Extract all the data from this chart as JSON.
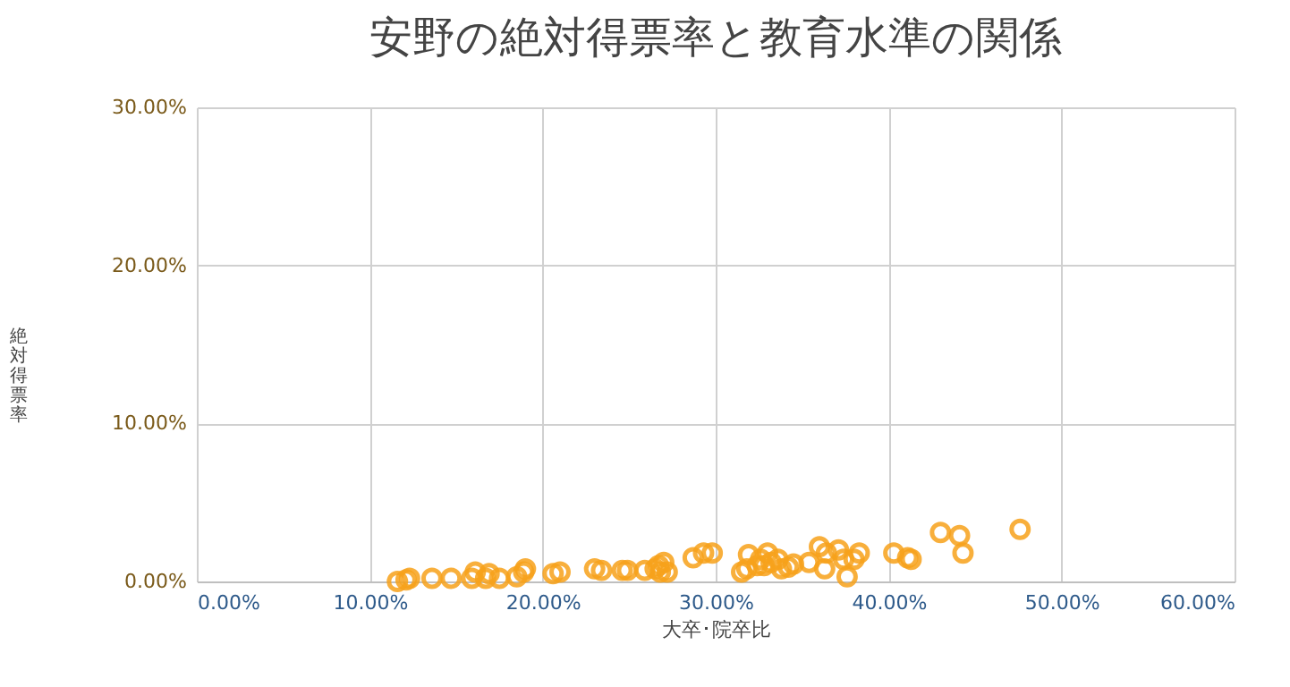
{
  "chart_data": {
    "type": "scatter",
    "title": "安野の絶対得票率と教育水準の関係",
    "xlabel": "大卒･院卒比",
    "ylabel": "絶対得票率",
    "x": [
      11.6,
      12.1,
      12.3,
      13.6,
      14.7,
      15.9,
      16.1,
      16.7,
      16.9,
      17.5,
      18.5,
      18.9,
      19.0,
      20.6,
      21.0,
      23.0,
      23.4,
      24.6,
      24.9,
      25.9,
      26.5,
      26.7,
      26.8,
      27.0,
      27.2,
      28.7,
      29.3,
      29.8,
      31.5,
      31.8,
      31.9,
      32.4,
      32.6,
      32.8,
      33.0,
      33.2,
      33.6,
      33.8,
      34.2,
      34.5,
      35.4,
      36.0,
      36.3,
      36.4,
      37.1,
      37.4,
      37.6,
      38.0,
      38.3,
      40.3,
      41.1,
      41.3,
      43.0,
      44.1,
      44.3,
      47.6
    ],
    "series": [
      {
        "color": "#f7a21b",
        "values": [
          0.0,
          0.1,
          0.2,
          0.2,
          0.2,
          0.2,
          0.6,
          0.2,
          0.5,
          0.2,
          0.3,
          0.6,
          0.8,
          0.5,
          0.6,
          0.8,
          0.7,
          0.7,
          0.7,
          0.7,
          0.8,
          1.0,
          0.6,
          1.2,
          0.6,
          1.5,
          1.8,
          1.8,
          0.6,
          0.8,
          1.7,
          1.0,
          1.4,
          1.0,
          1.8,
          1.2,
          1.4,
          0.8,
          0.9,
          1.1,
          1.2,
          2.2,
          0.8,
          1.8,
          2.0,
          1.4,
          0.3,
          1.4,
          1.8,
          1.8,
          1.5,
          1.4,
          3.1,
          2.9,
          1.8,
          3.3
        ]
      }
    ],
    "xlim": [
      0,
      60
    ],
    "xticks": [
      {
        "value": 0,
        "label": "0.00%"
      },
      {
        "value": 10,
        "label": "10.00%"
      },
      {
        "value": 20,
        "label": "20.00%"
      },
      {
        "value": 30,
        "label": "30.00%"
      },
      {
        "value": 40,
        "label": "40.00%"
      },
      {
        "value": 50,
        "label": "50.00%"
      },
      {
        "value": 60,
        "label": "60.00%"
      }
    ],
    "ylim": [
      0,
      30
    ],
    "yticks": [
      {
        "value": 0,
        "label": "0.00%"
      },
      {
        "value": 10,
        "label": "10.00%"
      },
      {
        "value": 20,
        "label": "20.00%"
      },
      {
        "value": 30,
        "label": "30.00%"
      }
    ],
    "grid": true,
    "marker": "circle"
  }
}
